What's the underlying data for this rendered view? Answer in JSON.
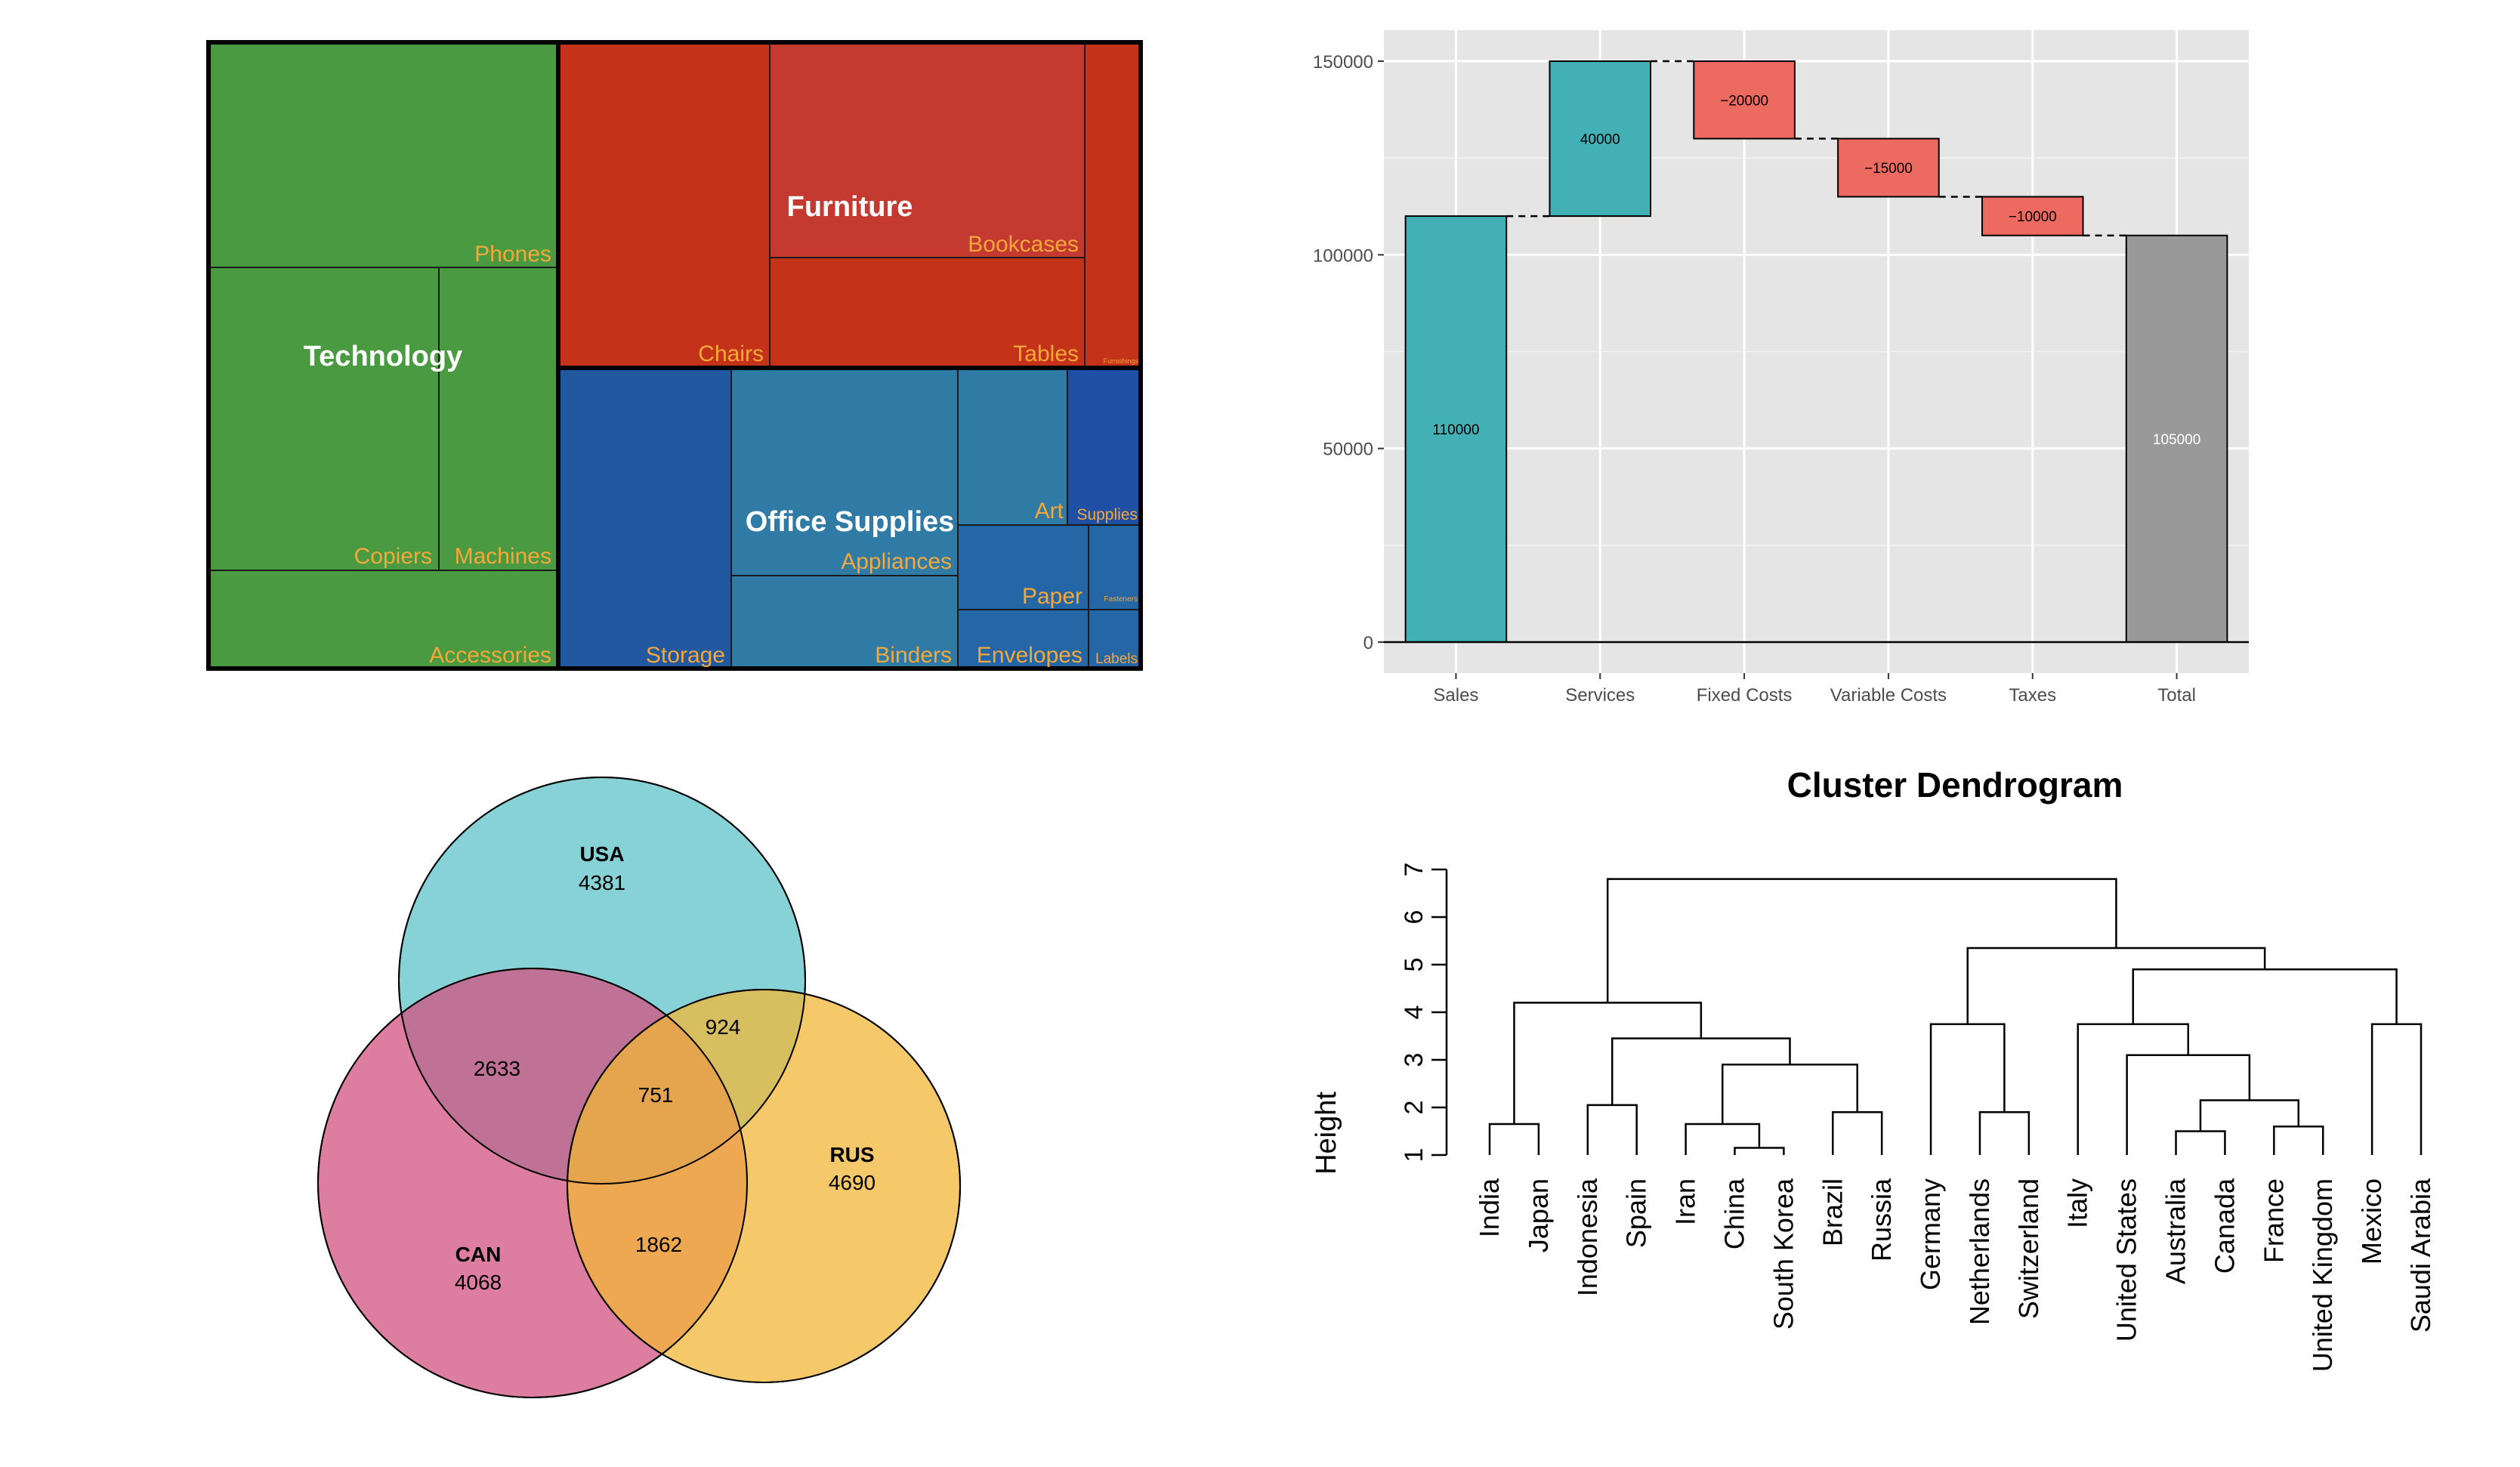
{
  "chart_data": [
    {
      "type": "treemap",
      "groups": [
        {
          "name": "Technology",
          "color": "#4a9a42",
          "children": [
            {
              "name": "Phones"
            },
            {
              "name": "Copiers"
            },
            {
              "name": "Machines"
            },
            {
              "name": "Accessories"
            }
          ]
        },
        {
          "name": "Furniture",
          "color": "#c4321a",
          "children": [
            {
              "name": "Chairs"
            },
            {
              "name": "Bookcases"
            },
            {
              "name": "Tables"
            },
            {
              "name": "Furnishings"
            }
          ]
        },
        {
          "name": "Office Supplies",
          "color": "#2f7ba5",
          "children": [
            {
              "name": "Storage"
            },
            {
              "name": "Appliances"
            },
            {
              "name": "Binders"
            },
            {
              "name": "Art"
            },
            {
              "name": "Supplies"
            },
            {
              "name": "Paper"
            },
            {
              "name": "Fasteners"
            },
            {
              "name": "Envelopes"
            },
            {
              "name": "Labels"
            }
          ]
        }
      ],
      "label_color": "#f4a83a"
    },
    {
      "type": "waterfall",
      "categories": [
        "Sales",
        "Services",
        "Fixed Costs",
        "Variable Costs",
        "Taxes",
        "Total"
      ],
      "values": [
        110000,
        40000,
        -20000,
        -15000,
        -10000,
        105000
      ],
      "labels": [
        "110000",
        "40000",
        "−20000",
        "−15000",
        "−10000",
        "105000"
      ],
      "yticks": [
        "0",
        "50000",
        "100000",
        "150000"
      ],
      "ytick_values": [
        0,
        50000,
        100000,
        150000
      ],
      "ylim": [
        -8000,
        158000
      ],
      "colors": {
        "positive": "#42b0b5",
        "negative": "#ec6a60",
        "total": "#999999"
      },
      "grid": true
    },
    {
      "type": "venn",
      "sets": [
        {
          "name": "USA",
          "value": "4381",
          "color": "#5fc3c9"
        },
        {
          "name": "CAN",
          "value": "4068",
          "color": "#d2527f"
        },
        {
          "name": "RUS",
          "value": "4690",
          "color": "#f2b737"
        }
      ],
      "intersections": {
        "USA_CAN": "2633",
        "USA_RUS": "924",
        "CAN_RUS": "1862",
        "ALL": "751"
      }
    },
    {
      "type": "dendrogram",
      "title": "Cluster Dendrogram",
      "ylabel": "Height",
      "yticks": [
        "1",
        "2",
        "3",
        "4",
        "5",
        "6",
        "7"
      ],
      "ylim": [
        1,
        7
      ],
      "leaves": [
        "India",
        "Japan",
        "Indonesia",
        "Spain",
        "Iran",
        "China",
        "South Korea",
        "Brazil",
        "Russia",
        "Germany",
        "Netherlands",
        "Switzerland",
        "Italy",
        "United States",
        "Australia",
        "Canada",
        "France",
        "United Kingdom",
        "Mexico",
        "Saudi Arabia"
      ],
      "merges": [
        {
          "a": "L0",
          "b": "L1",
          "h": 1.65
        },
        {
          "a": "L2",
          "b": "L3",
          "h": 2.05
        },
        {
          "a": "L5",
          "b": "L6",
          "h": 1.15
        },
        {
          "a": "L4",
          "b": "M2",
          "h": 1.65
        },
        {
          "a": "L7",
          "b": "L8",
          "h": 1.9
        },
        {
          "a": "M3",
          "b": "M4",
          "h": 2.9
        },
        {
          "a": "M1",
          "b": "M5",
          "h": 3.45
        },
        {
          "a": "M0",
          "b": "M6",
          "h": 4.2
        },
        {
          "a": "L10",
          "b": "L11",
          "h": 1.9
        },
        {
          "a": "L9",
          "b": "M8",
          "h": 3.75
        },
        {
          "a": "L14",
          "b": "L15",
          "h": 1.5
        },
        {
          "a": "L16",
          "b": "L17",
          "h": 1.6
        },
        {
          "a": "M10",
          "b": "M11",
          "h": 2.15
        },
        {
          "a": "L13",
          "b": "M12",
          "h": 3.1
        },
        {
          "a": "L12",
          "b": "M13",
          "h": 3.75
        },
        {
          "a": "L18",
          "b": "L19",
          "h": 3.75
        },
        {
          "a": "M14",
          "b": "M15",
          "h": 4.9
        },
        {
          "a": "M9",
          "b": "M16",
          "h": 5.35
        },
        {
          "a": "M7",
          "b": "M17",
          "h": 6.8
        }
      ]
    }
  ]
}
